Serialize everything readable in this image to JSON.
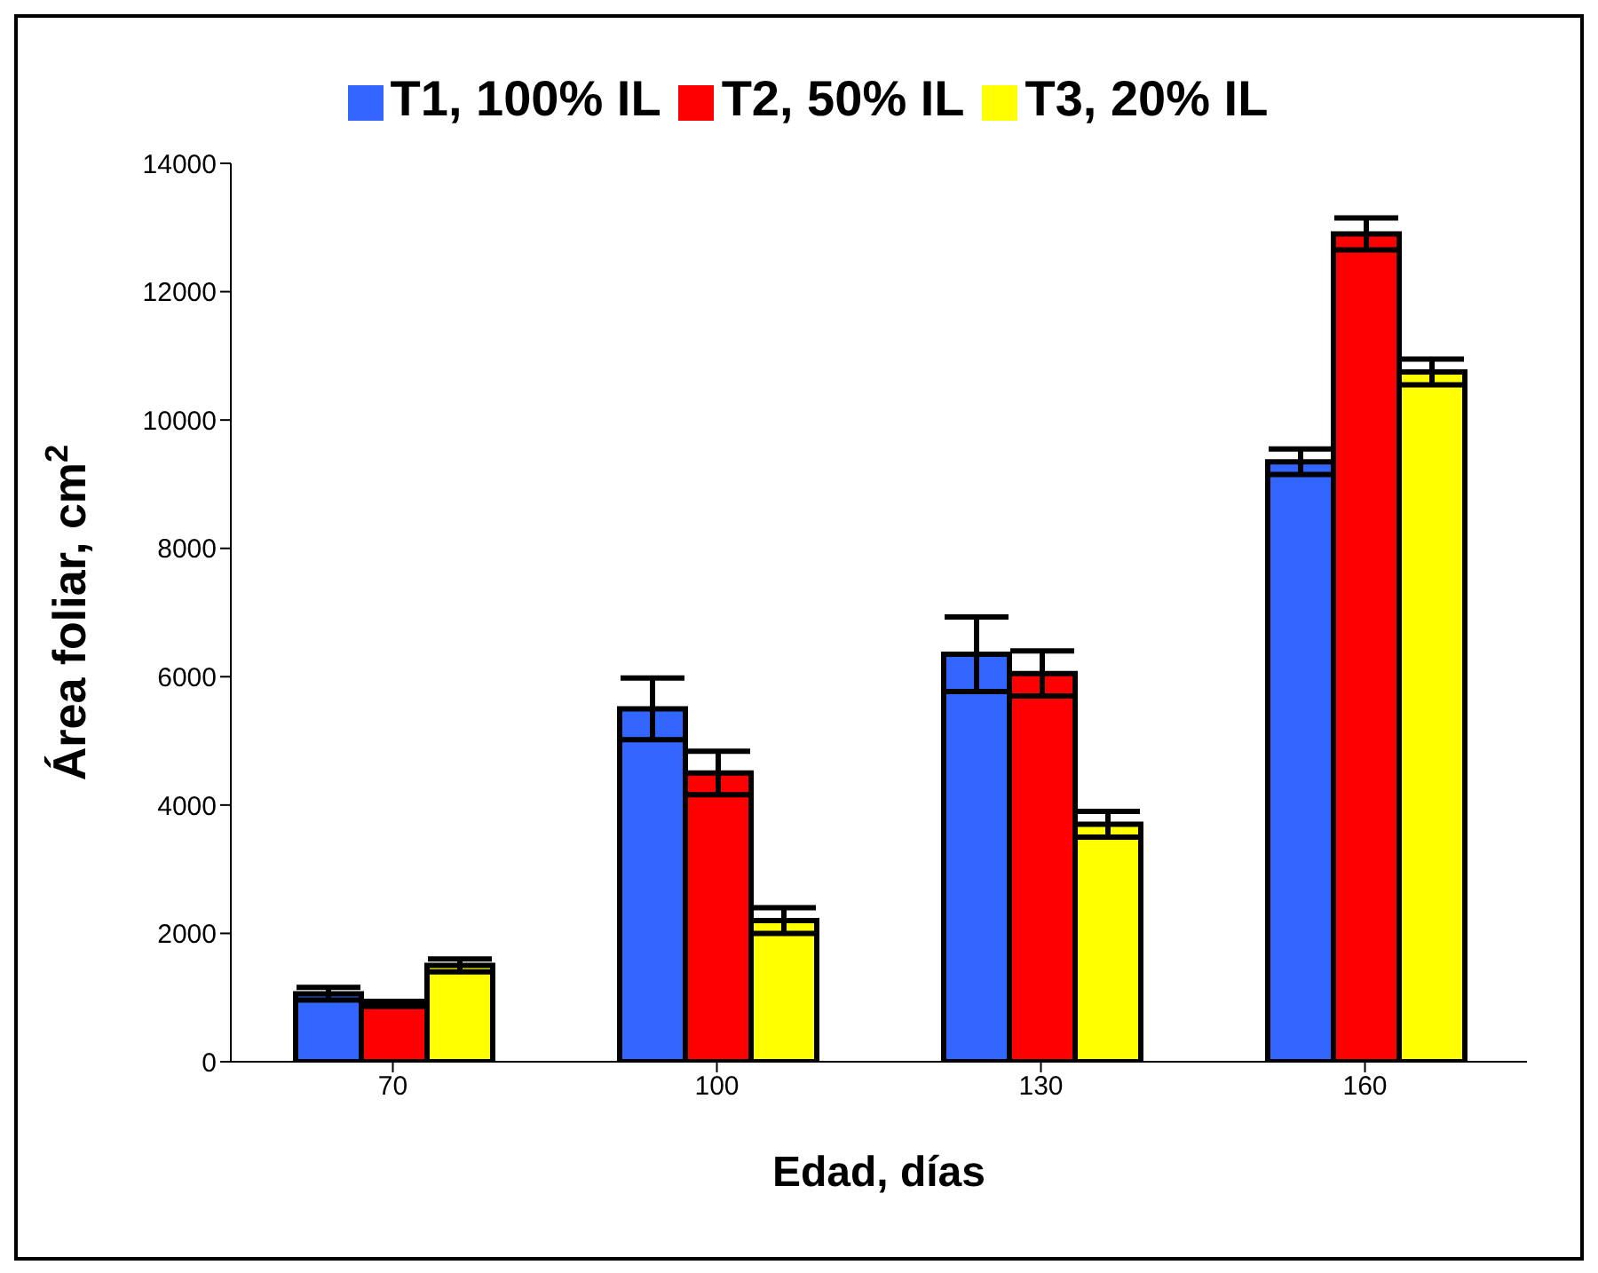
{
  "chart_data": {
    "type": "bar",
    "xlabel": "Edad, días",
    "ylabel": "Área foliar, cm$^{2}$",
    "categories": [
      "70",
      "100",
      "130",
      "160"
    ],
    "series": [
      {
        "name": "T1, 100% IL",
        "color": "#3366ff",
        "values": [
          1060,
          5500,
          6350,
          9350
        ],
        "errors": [
          100,
          480,
          580,
          200
        ]
      },
      {
        "name": "T2, 50% IL",
        "color": "#ff0000",
        "values": [
          900,
          4500,
          6050,
          12900
        ],
        "errors": [
          40,
          340,
          350,
          250
        ]
      },
      {
        "name": "T3, 20% IL",
        "color": "#ffff00",
        "values": [
          1500,
          2200,
          3700,
          10750
        ],
        "errors": [
          100,
          200,
          200,
          200
        ]
      }
    ],
    "ylim": [
      0,
      14000
    ],
    "yticks": [
      0,
      2000,
      4000,
      6000,
      8000,
      10000,
      12000,
      14000
    ],
    "grid": false,
    "legend": "top"
  }
}
